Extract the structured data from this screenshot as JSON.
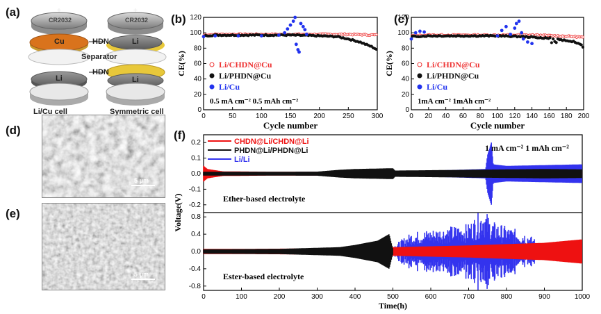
{
  "panels": {
    "a": "(a)",
    "b": "(b)",
    "c": "(c)",
    "d": "(d)",
    "e": "(e)",
    "f": "(f)"
  },
  "schematic": {
    "coin": "CR2032",
    "plus": "+",
    "cu": "Cu",
    "li": "Li",
    "hdn_top": "HDN",
    "hdn_bottom": "HDN",
    "separator": "Separator",
    "left_caption": "Li/Cu cell",
    "right_caption": "Symmetric cell",
    "colors": {
      "copper": "#d9731c",
      "hdn": "#e8c83a",
      "lithium": "#8a8a8a"
    }
  },
  "sem": {
    "d_scale": "5 μm",
    "e_scale": "5 μm"
  },
  "chart_data": [
    {
      "id": "b",
      "type": "scatter",
      "xlabel": "Cycle number",
      "ylabel": "CE(%)",
      "xlim": [
        0,
        300
      ],
      "ylim": [
        0,
        120
      ],
      "xticks": [
        0,
        50,
        100,
        150,
        200,
        250,
        300
      ],
      "yticks": [
        0,
        20,
        40,
        60,
        80,
        100,
        120
      ],
      "condition": "0.5 mA cm⁻² 0.5 mAh cm⁻²",
      "series": [
        {
          "name": "Li/CHDN@Cu",
          "color": "#ee3333",
          "x": [
            0,
            20,
            50,
            100,
            150,
            200,
            250,
            300
          ],
          "y": [
            97,
            98,
            98,
            98,
            98,
            98,
            98,
            97
          ]
        },
        {
          "name": "Li/PHDN@Cu",
          "color": "#111111",
          "x": [
            0,
            20,
            50,
            100,
            150,
            200,
            230,
            250,
            270,
            290,
            300
          ],
          "y": [
            96,
            97,
            97,
            97,
            97,
            96,
            95,
            92,
            88,
            82,
            78
          ]
        },
        {
          "name": "Li/Cu",
          "color": "#2233ee",
          "x": [
            0,
            20,
            60,
            100,
            130,
            140,
            145,
            150,
            155,
            158,
            160,
            163,
            165,
            168,
            172,
            175,
            178
          ],
          "y": [
            95,
            96,
            96,
            96,
            97,
            100,
            105,
            110,
            115,
            120,
            85,
            78,
            75,
            112,
            108,
            104,
            98
          ]
        }
      ]
    },
    {
      "id": "c",
      "type": "scatter",
      "xlabel": "Cycle number",
      "ylabel": "CE(%)",
      "xlim": [
        0,
        200
      ],
      "ylim": [
        0,
        120
      ],
      "xticks": [
        0,
        20,
        40,
        60,
        80,
        100,
        120,
        140,
        160,
        180,
        200
      ],
      "yticks": [
        0,
        20,
        40,
        60,
        80,
        100,
        120
      ],
      "condition": "1mA cm⁻² 1mAh cm⁻²",
      "series": [
        {
          "name": "Li/CHDN@Cu",
          "color": "#ee3333",
          "x": [
            0,
            20,
            60,
            100,
            140,
            170,
            190,
            200
          ],
          "y": [
            96,
            97,
            97,
            97,
            97,
            96,
            95,
            94
          ]
        },
        {
          "name": "Li/PHDN@Cu",
          "color": "#111111",
          "x": [
            0,
            20,
            60,
            100,
            130,
            160,
            180,
            190,
            195,
            200
          ],
          "y": [
            95,
            96,
            96,
            96,
            95,
            93,
            90,
            88,
            86,
            84
          ]
        },
        {
          "name": "Li/Cu",
          "color": "#2233ee",
          "x": [
            0,
            5,
            10,
            15,
            100,
            105,
            110,
            115,
            120,
            122,
            125,
            128,
            130,
            135,
            140
          ],
          "y": [
            92,
            100,
            102,
            101,
            96,
            103,
            108,
            98,
            106,
            112,
            115,
            100,
            92,
            88,
            86
          ]
        }
      ]
    },
    {
      "id": "f",
      "type": "line",
      "xlabel": "Time(h)",
      "ylabel": "Voltage(V)",
      "xlim": [
        0,
        1000
      ],
      "xticks": [
        0,
        100,
        200,
        300,
        400,
        500,
        600,
        700,
        800,
        900,
        1000
      ],
      "condition": "1 mA cm⁻²  1 mAh cm⁻²",
      "legend": [
        "CHDN@Li/CHDN@Li",
        "PHDN@Li/PHDN@Li",
        "Li/Li"
      ],
      "subplots": [
        {
          "label": "Ether-based electrolyte",
          "ylim": [
            -0.25,
            0.25
          ],
          "yticks": [
            0.2,
            0.1,
            0.0,
            -0.1,
            -0.2
          ],
          "series": [
            {
              "name": "CHDN@Li/CHDN@Li",
              "color": "#ee1111",
              "x": [
                0,
                10,
                50,
                200,
                500,
                800,
                1000
              ],
              "amp": [
                0.05,
                0.03,
                0.015,
                0.012,
                0.013,
                0.014,
                0.015
              ]
            },
            {
              "name": "PHDN@Li/PHDN@Li",
              "color": "#111111",
              "x": [
                0,
                100,
                300,
                360,
                400,
                500,
                505,
                700,
                900,
                1000
              ],
              "amp": [
                0.012,
                0.012,
                0.013,
                0.025,
                0.03,
                0.035,
                0.02,
                0.025,
                0.03,
                0.028
              ]
            },
            {
              "name": "Li/Li",
              "color": "#3333ee",
              "x": [
                0,
                200,
                400,
                600,
                745,
                750,
                760,
                765,
                800,
                900,
                1000
              ],
              "amp": [
                0.01,
                0.01,
                0.015,
                0.02,
                0.03,
                0.12,
                0.2,
                0.06,
                0.05,
                0.055,
                0.06
              ]
            }
          ]
        },
        {
          "label": "Ester-based electrolyte",
          "ylim": [
            -0.9,
            0.9
          ],
          "yticks": [
            0.8,
            0.4,
            0.0,
            -0.4,
            -0.8
          ],
          "series": [
            {
              "name": "CHDN@Li/CHDN@Li",
              "color": "#ee1111",
              "x": [
                0,
                100,
                300,
                500,
                700,
                900,
                1000
              ],
              "amp": [
                0.06,
                0.06,
                0.07,
                0.1,
                0.14,
                0.2,
                0.28
              ]
            },
            {
              "name": "PHDN@Li/PHDN@Li",
              "color": "#111111",
              "x": [
                0,
                200,
                360,
                400,
                460,
                490,
                500
              ],
              "amp": [
                0.05,
                0.06,
                0.1,
                0.15,
                0.25,
                0.4,
                0.05
              ]
            },
            {
              "name": "Li/Li",
              "color": "#3333ee",
              "x": [
                0,
                300,
                500,
                550,
                600,
                650,
                700,
                740,
                760,
                800,
                850,
                880
              ],
              "amp": [
                0.05,
                0.06,
                0.1,
                0.35,
                0.4,
                0.45,
                0.5,
                0.8,
                0.55,
                0.45,
                0.35,
                0.2
              ]
            }
          ]
        }
      ]
    }
  ]
}
